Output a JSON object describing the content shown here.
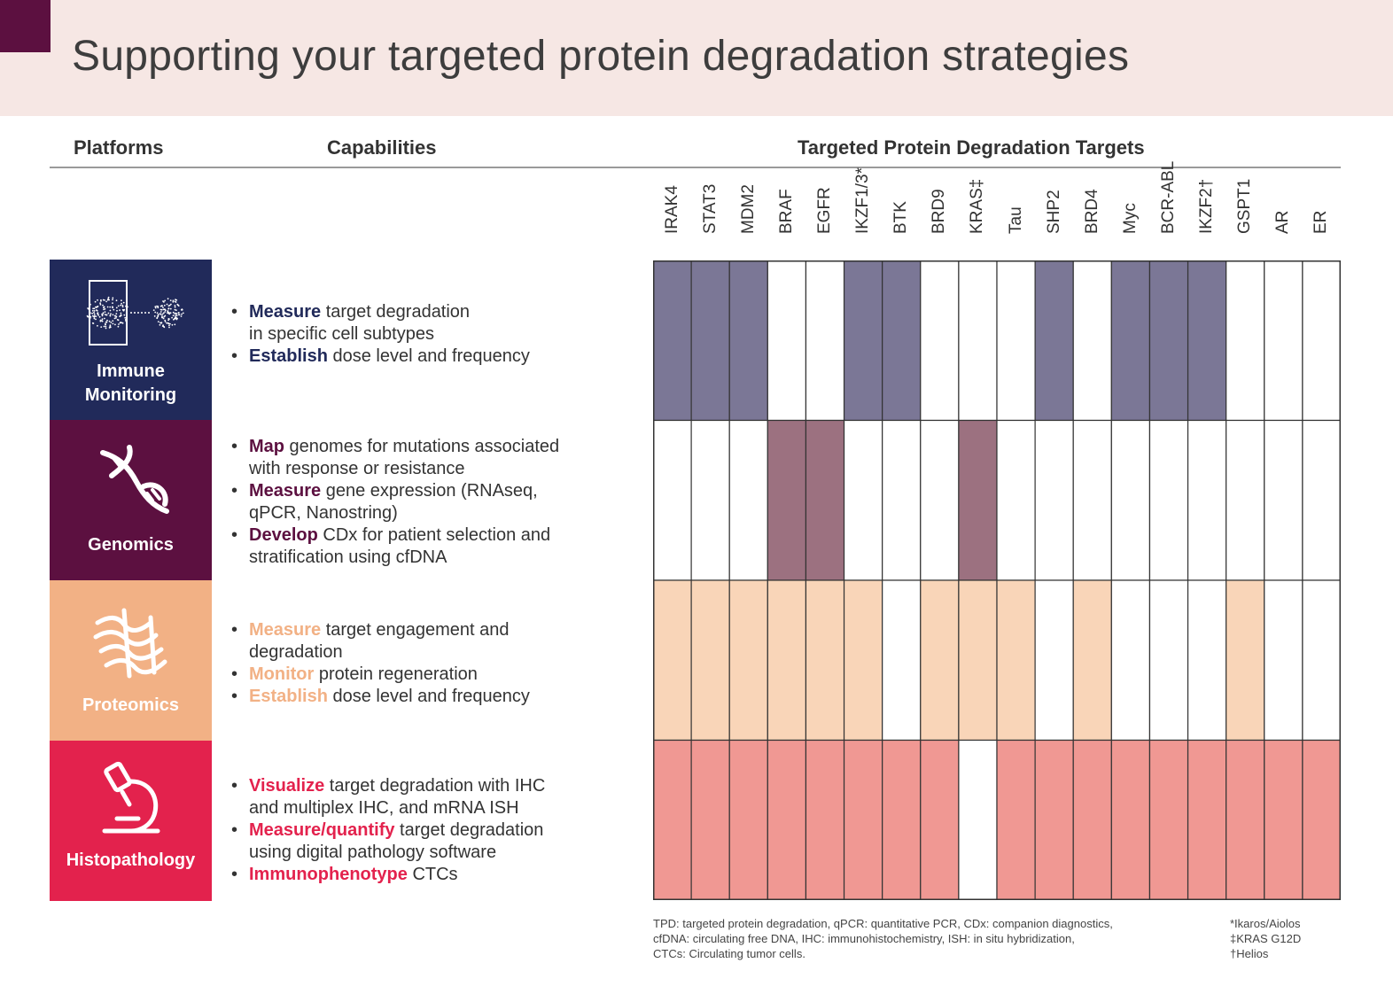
{
  "title": "Supporting your targeted protein degradation strategies",
  "headers": {
    "platforms": "Platforms",
    "capabilities": "Capabilities",
    "targets": "Targeted Protein Degradation Targets"
  },
  "colors": {
    "immune": "#212a5a",
    "genomics": "#5c1040",
    "proteomics": "#f2b185",
    "histopathology": "#e3224d",
    "immune_cell": "#7b7796",
    "genomics_cell": "#9c7180",
    "proteomics_cell": "#f9d5b8",
    "histopathology_cell": "#f09893"
  },
  "platforms": [
    {
      "name_line1": "Immune",
      "name_line2": "Monitoring",
      "icon": "flow-cytometry-icon",
      "capabilities": [
        {
          "bold": "Measure",
          "rest": " target degradation",
          "line2": "in specific cell subtypes"
        },
        {
          "bold": "Establish",
          "rest": " dose level and frequency",
          "line2": ""
        }
      ]
    },
    {
      "name_line1": "Genomics",
      "name_line2": "",
      "icon": "dna-icon",
      "capabilities": [
        {
          "bold": "Map",
          "rest": " genomes for mutations associated",
          "line2": "with response or resistance"
        },
        {
          "bold": "Measure",
          "rest": " gene expression (RNAseq,",
          "line2": "qPCR, Nanostring)"
        },
        {
          "bold": "Develop",
          "rest": " CDx for patient selection and",
          "line2": "stratification using cfDNA"
        }
      ]
    },
    {
      "name_line1": "Proteomics",
      "name_line2": "",
      "icon": "protein-structure-icon",
      "capabilities": [
        {
          "bold": "Measure",
          "rest": " target engagement and",
          "line2": "degradation"
        },
        {
          "bold": "Monitor",
          "rest": " protein regeneration",
          "line2": ""
        },
        {
          "bold": "Establish",
          "rest": " dose level and frequency",
          "line2": ""
        }
      ]
    },
    {
      "name_line1": "Histopathology",
      "name_line2": "",
      "icon": "microscope-icon",
      "capabilities": [
        {
          "bold": "Visualize",
          "rest": " target degradation with IHC",
          "line2": "and multiplex IHC, and mRNA ISH"
        },
        {
          "bold": "Measure/quantify",
          "rest": " target degradation",
          "line2": "using digital pathology software"
        },
        {
          "bold": "Immunophenotype",
          "rest": " CTCs",
          "line2": ""
        }
      ]
    }
  ],
  "targets": [
    "IRAK4",
    "STAT3",
    "MDM2",
    "BRAF",
    "EGFR",
    "IKZF1/3*",
    "BTK",
    "BRD9",
    "KRAS‡",
    "Tau",
    "SHP2",
    "BRD4",
    "Myc",
    "BCR-ABL",
    "IKZF2†",
    "GSPT1",
    "AR",
    "ER"
  ],
  "matrix": [
    [
      1,
      1,
      1,
      0,
      0,
      1,
      1,
      0,
      0,
      0,
      1,
      0,
      1,
      1,
      1,
      0,
      0,
      0
    ],
    [
      0,
      0,
      0,
      1,
      1,
      0,
      0,
      0,
      1,
      0,
      0,
      0,
      0,
      0,
      0,
      0,
      0,
      0
    ],
    [
      1,
      1,
      1,
      1,
      1,
      1,
      0,
      1,
      1,
      1,
      0,
      1,
      0,
      0,
      0,
      1,
      0,
      0
    ],
    [
      1,
      1,
      1,
      1,
      1,
      1,
      1,
      1,
      0,
      1,
      1,
      1,
      1,
      1,
      1,
      1,
      1,
      1
    ]
  ],
  "footnote_lines": [
    "TPD: targeted protein degradation, qPCR: quantitative PCR, CDx: companion diagnostics,",
    "cfDNA: circulating free DNA, IHC: immunohistochemistry, ISH: in situ hybridization,",
    "CTCs: Circulating tumor cells."
  ],
  "symbol_notes": [
    "*Ikaros/Aiolos",
    "‡KRAS G12D",
    "†Helios"
  ]
}
